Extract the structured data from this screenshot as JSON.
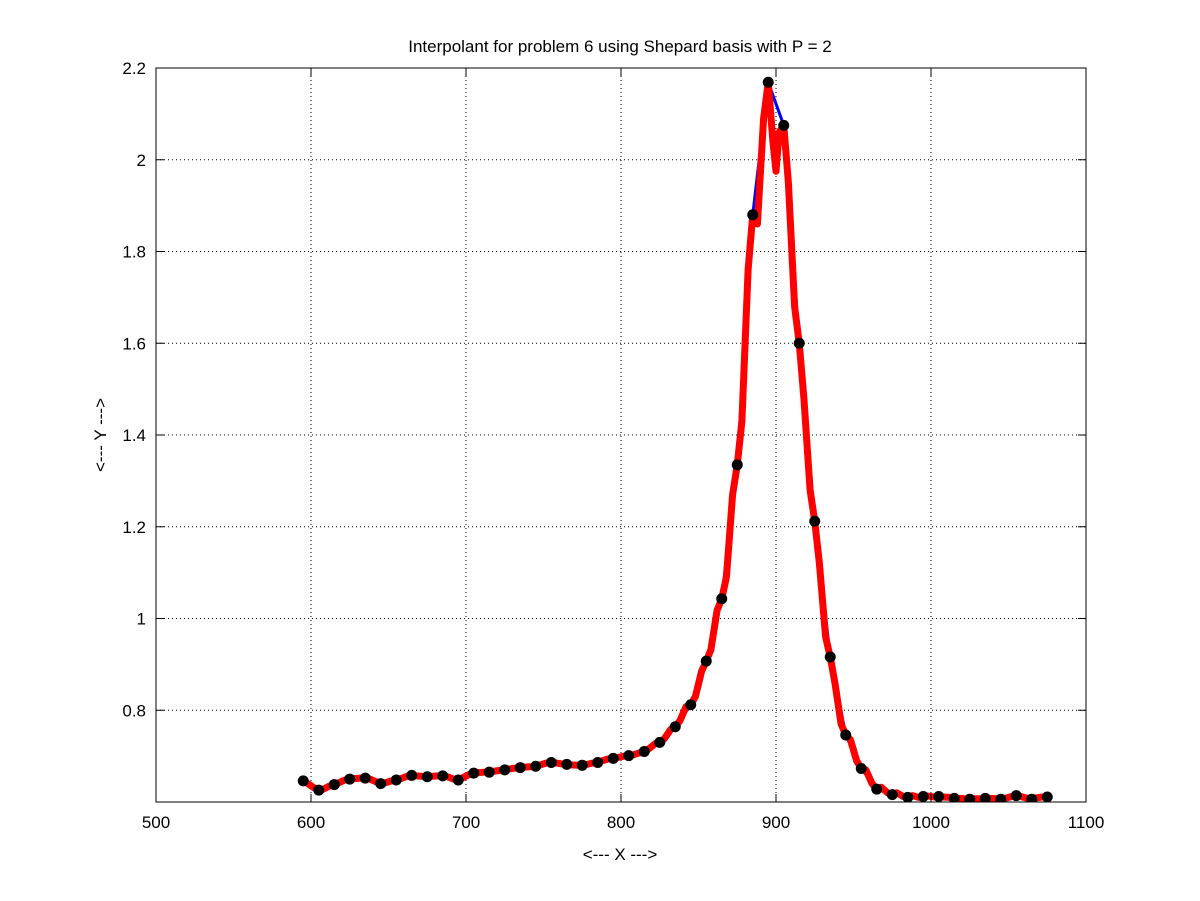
{
  "chart_data": {
    "type": "line",
    "title": "Interpolant for problem 6 using Shepard basis with P = 2",
    "xlabel": "<--- X --->",
    "ylabel": "<--- Y --->",
    "xlim": [
      500,
      1100
    ],
    "ylim": [
      0.6,
      2.2
    ],
    "x_ticks": [
      500,
      600,
      700,
      800,
      900,
      1000,
      1100
    ],
    "y_ticks": [
      0.8,
      1,
      1.2,
      1.4,
      1.6,
      1.8,
      2,
      2.2
    ],
    "x_tick_labels": [
      "500",
      "600",
      "700",
      "800",
      "900",
      "1000",
      "1100"
    ],
    "y_tick_labels": [
      "0.8",
      "1",
      "1.2",
      "1.4",
      "1.6",
      "1.8",
      "2",
      "2.2"
    ],
    "grid": true,
    "grid_style": "dotted",
    "colors": {
      "data_line": "#0000ff",
      "interpolant": "#ff0000",
      "markers": "#000000",
      "axes": "#000000",
      "grid": "#000000"
    },
    "series": [
      {
        "role": "data-line",
        "x": [
          595,
          605,
          615,
          625,
          635,
          645,
          655,
          665,
          675,
          685,
          695,
          705,
          715,
          725,
          735,
          745,
          755,
          765,
          775,
          785,
          795,
          805,
          815,
          825,
          835,
          845,
          855,
          865,
          875,
          885,
          895,
          905,
          915,
          925,
          935,
          945,
          955,
          965,
          975,
          985,
          995,
          1005,
          1015,
          1025,
          1035,
          1045,
          1055,
          1065,
          1075
        ],
        "y": [
          0.646,
          0.626,
          0.638,
          0.65,
          0.652,
          0.64,
          0.648,
          0.658,
          0.655,
          0.657,
          0.648,
          0.663,
          0.665,
          0.67,
          0.675,
          0.678,
          0.686,
          0.682,
          0.68,
          0.686,
          0.695,
          0.701,
          0.71,
          0.73,
          0.764,
          0.812,
          0.907,
          1.043,
          1.335,
          1.88,
          2.169,
          2.075,
          1.6,
          1.212,
          0.916,
          0.746,
          0.673,
          0.628,
          0.616,
          0.61,
          0.612,
          0.612,
          0.608,
          0.606,
          0.608,
          0.606,
          0.614,
          0.606,
          0.611
        ]
      },
      {
        "role": "interpolant",
        "x": [
          595,
          598,
          602,
          605,
          608,
          612,
          615,
          618,
          622,
          625,
          628,
          632,
          635,
          638,
          642,
          645,
          648,
          652,
          655,
          658,
          662,
          665,
          668,
          672,
          675,
          678,
          682,
          685,
          688,
          692,
          695,
          698,
          702,
          705,
          708,
          712,
          715,
          718,
          722,
          725,
          728,
          732,
          735,
          738,
          742,
          745,
          748,
          752,
          755,
          758,
          762,
          765,
          768,
          772,
          775,
          778,
          782,
          785,
          788,
          792,
          795,
          798,
          802,
          805,
          808,
          812,
          815,
          818,
          822,
          825,
          828,
          832,
          835,
          838,
          842,
          845,
          848,
          852,
          855,
          858,
          862,
          865,
          868,
          872,
          875,
          878,
          882,
          885,
          888,
          892,
          895,
          898,
          900,
          902,
          905,
          908,
          912,
          915,
          918,
          922,
          925,
          928,
          932,
          935,
          938,
          942,
          945,
          948,
          952,
          955,
          958,
          962,
          965,
          968,
          972,
          975,
          978,
          982,
          985,
          988,
          992,
          995,
          998,
          1002,
          1005,
          1008,
          1012,
          1015,
          1018,
          1022,
          1025,
          1028,
          1032,
          1035,
          1038,
          1042,
          1045,
          1048,
          1052,
          1055,
          1058,
          1062,
          1065,
          1068,
          1072,
          1075
        ],
        "y": [
          0.646,
          0.64,
          0.631,
          0.626,
          0.628,
          0.635,
          0.638,
          0.642,
          0.648,
          0.65,
          0.651,
          0.652,
          0.652,
          0.65,
          0.644,
          0.64,
          0.642,
          0.646,
          0.648,
          0.651,
          0.656,
          0.658,
          0.657,
          0.656,
          0.655,
          0.656,
          0.657,
          0.657,
          0.655,
          0.65,
          0.648,
          0.653,
          0.66,
          0.663,
          0.664,
          0.665,
          0.665,
          0.667,
          0.669,
          0.67,
          0.672,
          0.674,
          0.675,
          0.676,
          0.677,
          0.678,
          0.681,
          0.685,
          0.686,
          0.685,
          0.683,
          0.682,
          0.681,
          0.68,
          0.68,
          0.682,
          0.685,
          0.686,
          0.69,
          0.694,
          0.695,
          0.697,
          0.7,
          0.701,
          0.703,
          0.707,
          0.71,
          0.716,
          0.727,
          0.73,
          0.738,
          0.758,
          0.764,
          0.777,
          0.808,
          0.812,
          0.83,
          0.885,
          0.907,
          0.932,
          1.018,
          1.043,
          1.09,
          1.27,
          1.335,
          1.43,
          1.76,
          1.88,
          1.86,
          2.09,
          2.169,
          2.04,
          1.975,
          2.06,
          2.075,
          1.95,
          1.68,
          1.6,
          1.48,
          1.28,
          1.212,
          1.12,
          0.96,
          0.916,
          0.86,
          0.77,
          0.746,
          0.736,
          0.69,
          0.673,
          0.67,
          0.64,
          0.628,
          0.632,
          0.62,
          0.616,
          0.62,
          0.612,
          0.61,
          0.614,
          0.61,
          0.612,
          0.613,
          0.611,
          0.612,
          0.611,
          0.61,
          0.608,
          0.608,
          0.607,
          0.606,
          0.607,
          0.607,
          0.608,
          0.608,
          0.607,
          0.606,
          0.608,
          0.612,
          0.614,
          0.612,
          0.608,
          0.606,
          0.609,
          0.611,
          0.611
        ]
      },
      {
        "role": "markers",
        "x": [
          595,
          605,
          615,
          625,
          635,
          645,
          655,
          665,
          675,
          685,
          695,
          705,
          715,
          725,
          735,
          745,
          755,
          765,
          775,
          785,
          795,
          805,
          815,
          825,
          835,
          845,
          855,
          865,
          875,
          885,
          895,
          905,
          915,
          925,
          935,
          945,
          955,
          965,
          975,
          985,
          995,
          1005,
          1015,
          1025,
          1035,
          1045,
          1055,
          1065,
          1075
        ],
        "y": [
          0.646,
          0.626,
          0.638,
          0.65,
          0.652,
          0.64,
          0.648,
          0.658,
          0.655,
          0.657,
          0.648,
          0.663,
          0.665,
          0.67,
          0.675,
          0.678,
          0.686,
          0.682,
          0.68,
          0.686,
          0.695,
          0.701,
          0.71,
          0.73,
          0.764,
          0.812,
          0.907,
          1.043,
          1.335,
          1.88,
          2.169,
          2.075,
          1.6,
          1.212,
          0.916,
          0.746,
          0.673,
          0.628,
          0.616,
          0.61,
          0.612,
          0.612,
          0.608,
          0.606,
          0.608,
          0.606,
          0.614,
          0.606,
          0.611
        ]
      }
    ]
  }
}
